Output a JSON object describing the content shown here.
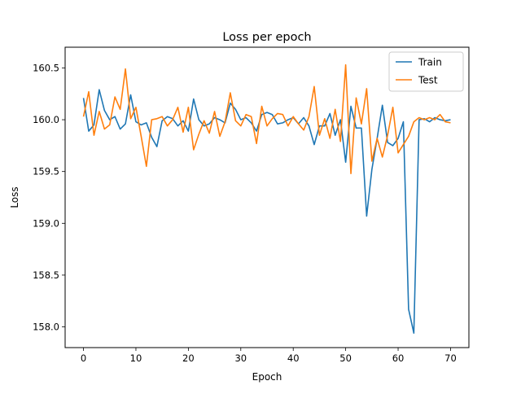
{
  "chart_data": {
    "type": "line",
    "title": "Loss per epoch",
    "xlabel": "Epoch",
    "ylabel": "Loss",
    "xlim": [
      -3.5,
      73.5
    ],
    "ylim": [
      157.8,
      160.7
    ],
    "xticks": [
      0,
      10,
      20,
      30,
      40,
      50,
      60,
      70
    ],
    "yticks": [
      158.0,
      158.5,
      159.0,
      159.5,
      160.0,
      160.5
    ],
    "ytick_labels": [
      "158.0",
      "158.5",
      "159.0",
      "159.5",
      "160.0",
      "160.5"
    ],
    "legend": {
      "position": "top-right"
    },
    "grid": false,
    "x": [
      0,
      1,
      2,
      3,
      4,
      5,
      6,
      7,
      8,
      9,
      10,
      11,
      12,
      13,
      14,
      15,
      16,
      17,
      18,
      19,
      20,
      21,
      22,
      23,
      24,
      25,
      26,
      27,
      28,
      29,
      30,
      31,
      32,
      33,
      34,
      35,
      36,
      37,
      38,
      39,
      40,
      41,
      42,
      43,
      44,
      45,
      46,
      47,
      48,
      49,
      50,
      51,
      52,
      53,
      54,
      55,
      56,
      57,
      58,
      59,
      60,
      61,
      62,
      63,
      64,
      65,
      66,
      67,
      68,
      69,
      70
    ],
    "series": [
      {
        "name": "Train",
        "color": "#1f77b4",
        "values": [
          160.21,
          159.89,
          159.95,
          160.29,
          160.09,
          160.0,
          160.03,
          159.91,
          159.96,
          160.24,
          159.98,
          159.95,
          159.97,
          159.83,
          159.74,
          159.99,
          160.03,
          160.01,
          159.94,
          159.99,
          159.89,
          160.2,
          160.0,
          159.94,
          159.96,
          160.02,
          160.0,
          159.97,
          160.16,
          160.1,
          160.0,
          160.02,
          159.97,
          159.89,
          160.05,
          160.07,
          160.05,
          159.96,
          159.97,
          160.0,
          160.02,
          159.96,
          160.02,
          159.94,
          159.76,
          159.94,
          159.94,
          160.06,
          159.85,
          160.0,
          159.59,
          160.13,
          159.92,
          159.92,
          159.07,
          159.52,
          159.82,
          160.14,
          159.78,
          159.75,
          159.82,
          159.98,
          158.17,
          157.94,
          160.0,
          160.01,
          159.98,
          160.02,
          160.0,
          159.99,
          160.0
        ]
      },
      {
        "name": "Test",
        "color": "#ff7f0e",
        "values": [
          160.03,
          160.27,
          159.85,
          160.08,
          159.91,
          159.95,
          160.22,
          160.1,
          160.49,
          160.01,
          160.12,
          159.84,
          159.55,
          160.0,
          160.01,
          160.03,
          159.94,
          160.0,
          160.12,
          159.88,
          160.12,
          159.71,
          159.86,
          159.99,
          159.87,
          160.08,
          159.84,
          159.98,
          160.26,
          159.99,
          159.94,
          160.05,
          160.03,
          159.77,
          160.13,
          159.94,
          160.01,
          160.06,
          160.05,
          159.94,
          160.03,
          159.96,
          159.9,
          160.03,
          160.32,
          159.85,
          160.01,
          159.82,
          160.1,
          159.79,
          160.53,
          159.48,
          160.21,
          159.96,
          160.3,
          159.6,
          159.82,
          159.64,
          159.85,
          160.12,
          159.68,
          159.76,
          159.84,
          159.98,
          160.02,
          160.0,
          160.02,
          160.0,
          160.05,
          159.98,
          159.97
        ]
      }
    ]
  }
}
